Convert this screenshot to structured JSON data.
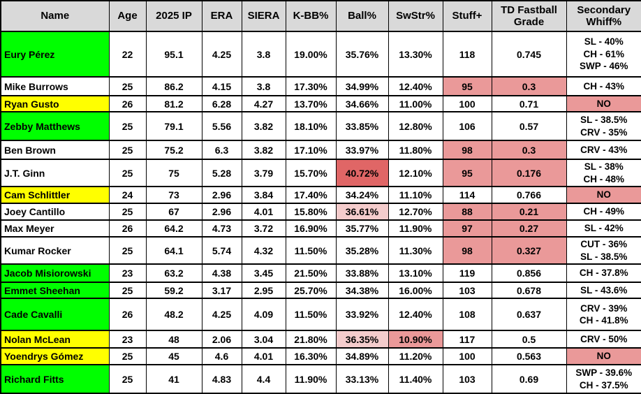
{
  "chart_data": {
    "type": "table",
    "colors": {
      "header_bg": "#d9d9d9",
      "green": "#00ff00",
      "yellow": "#ffff00",
      "red": "#ea9999",
      "dark_red": "#e06666",
      "pink": "#f4cccc",
      "white": "#ffffff",
      "border": "#000000"
    },
    "columns": [
      {
        "key": "name",
        "label": "Name"
      },
      {
        "key": "age",
        "label": "Age"
      },
      {
        "key": "ip",
        "label": "2025 IP"
      },
      {
        "key": "era",
        "label": "ERA"
      },
      {
        "key": "siera",
        "label": "SIERA"
      },
      {
        "key": "kbb",
        "label": "K-BB%"
      },
      {
        "key": "ball",
        "label": "Ball%"
      },
      {
        "key": "swstr",
        "label": "SwStr%"
      },
      {
        "key": "stuff",
        "label": "Stuff+"
      },
      {
        "key": "td",
        "label": "TD Fastball Grade"
      },
      {
        "key": "whiff",
        "label": "Secondary Whiff%"
      }
    ],
    "rows": [
      {
        "cells": {
          "name": "Eury Pérez",
          "age": "22",
          "ip": "95.1",
          "era": "4.25",
          "siera": "3.8",
          "kbb": "19.00%",
          "ball": "35.76%",
          "swstr": "13.30%",
          "stuff": "118",
          "td": "0.745",
          "whiff": "SL - 40%\nCH - 61%\nSWP - 46%"
        },
        "bg": {
          "name": "green"
        }
      },
      {
        "cells": {
          "name": "Mike Burrows",
          "age": "25",
          "ip": "86.2",
          "era": "4.15",
          "siera": "3.8",
          "kbb": "17.30%",
          "ball": "34.99%",
          "swstr": "12.40%",
          "stuff": "95",
          "td": "0.3",
          "whiff": "CH - 43%"
        },
        "bg": {
          "name": "white",
          "stuff": "red",
          "td": "red"
        }
      },
      {
        "cells": {
          "name": "Ryan Gusto",
          "age": "26",
          "ip": "81.2",
          "era": "6.28",
          "siera": "4.27",
          "kbb": "13.70%",
          "ball": "34.66%",
          "swstr": "11.00%",
          "stuff": "100",
          "td": "0.71",
          "whiff": "NO"
        },
        "bg": {
          "name": "yellow",
          "whiff": "red"
        }
      },
      {
        "cells": {
          "name": "Zebby Matthews",
          "age": "25",
          "ip": "79.1",
          "era": "5.56",
          "siera": "3.82",
          "kbb": "18.10%",
          "ball": "33.85%",
          "swstr": "12.80%",
          "stuff": "106",
          "td": "0.57",
          "whiff": "SL - 38.5%\nCRV - 35%"
        },
        "bg": {
          "name": "green"
        }
      },
      {
        "cells": {
          "name": "Ben Brown",
          "age": "25",
          "ip": "75.2",
          "era": "6.3",
          "siera": "3.82",
          "kbb": "17.10%",
          "ball": "33.97%",
          "swstr": "11.80%",
          "stuff": "98",
          "td": "0.3",
          "whiff": "CRV - 43%"
        },
        "bg": {
          "name": "white",
          "stuff": "red",
          "td": "red"
        }
      },
      {
        "cells": {
          "name": "J.T. Ginn",
          "age": "25",
          "ip": "75",
          "era": "5.28",
          "siera": "3.79",
          "kbb": "15.70%",
          "ball": "40.72%",
          "swstr": "12.10%",
          "stuff": "95",
          "td": "0.176",
          "whiff": "SL - 38%\nCH - 48%"
        },
        "bg": {
          "name": "white",
          "ball": "dark_red",
          "stuff": "red",
          "td": "red"
        }
      },
      {
        "cells": {
          "name": "Cam Schlittler",
          "age": "24",
          "ip": "73",
          "era": "2.96",
          "siera": "3.84",
          "kbb": "17.40%",
          "ball": "34.24%",
          "swstr": "11.10%",
          "stuff": "114",
          "td": "0.766",
          "whiff": "NO"
        },
        "bg": {
          "name": "yellow",
          "whiff": "red"
        }
      },
      {
        "cells": {
          "name": "Joey Cantillo",
          "age": "25",
          "ip": "67",
          "era": "2.96",
          "siera": "4.01",
          "kbb": "15.80%",
          "ball": "36.61%",
          "swstr": "12.70%",
          "stuff": "88",
          "td": "0.21",
          "whiff": "CH - 49%"
        },
        "bg": {
          "name": "white",
          "ball": "pink",
          "stuff": "red",
          "td": "red"
        }
      },
      {
        "cells": {
          "name": "Max Meyer",
          "age": "26",
          "ip": "64.2",
          "era": "4.73",
          "siera": "3.72",
          "kbb": "16.90%",
          "ball": "35.77%",
          "swstr": "11.90%",
          "stuff": "97",
          "td": "0.27",
          "whiff": "SL - 42%"
        },
        "bg": {
          "name": "white",
          "stuff": "red",
          "td": "red"
        }
      },
      {
        "cells": {
          "name": "Kumar Rocker",
          "age": "25",
          "ip": "64.1",
          "era": "5.74",
          "siera": "4.32",
          "kbb": "11.50%",
          "ball": "35.28%",
          "swstr": "11.30%",
          "stuff": "98",
          "td": "0.327",
          "whiff": "CUT - 36%\nSL - 38.5%"
        },
        "bg": {
          "name": "white",
          "stuff": "red",
          "td": "red"
        }
      },
      {
        "cells": {
          "name": "Jacob Misiorowski",
          "age": "23",
          "ip": "63.2",
          "era": "4.38",
          "siera": "3.45",
          "kbb": "21.50%",
          "ball": "33.88%",
          "swstr": "13.10%",
          "stuff": "119",
          "td": "0.856",
          "whiff": "CH - 37.8%"
        },
        "bg": {
          "name": "green"
        }
      },
      {
        "cells": {
          "name": "Emmet Sheehan",
          "age": "25",
          "ip": "59.2",
          "era": "3.17",
          "siera": "2.95",
          "kbb": "25.70%",
          "ball": "34.38%",
          "swstr": "16.00%",
          "stuff": "103",
          "td": "0.678",
          "whiff": "SL - 43.6%"
        },
        "bg": {
          "name": "green"
        }
      },
      {
        "cells": {
          "name": "Cade Cavalli",
          "age": "26",
          "ip": "48.2",
          "era": "4.25",
          "siera": "4.09",
          "kbb": "11.50%",
          "ball": "33.92%",
          "swstr": "12.40%",
          "stuff": "108",
          "td": "0.637",
          "whiff": "CRV - 39%\nCH - 41.8%"
        },
        "bg": {
          "name": "green"
        }
      },
      {
        "cells": {
          "name": "Nolan McLean",
          "age": "23",
          "ip": "48",
          "era": "2.06",
          "siera": "3.04",
          "kbb": "21.80%",
          "ball": "36.35%",
          "swstr": "10.90%",
          "stuff": "117",
          "td": "0.5",
          "whiff": "CRV - 50%"
        },
        "bg": {
          "name": "yellow",
          "ball": "pink",
          "swstr": "red"
        }
      },
      {
        "cells": {
          "name": "Yoendrys Gómez",
          "age": "25",
          "ip": "45",
          "era": "4.6",
          "siera": "4.01",
          "kbb": "16.30%",
          "ball": "34.89%",
          "swstr": "11.20%",
          "stuff": "100",
          "td": "0.563",
          "whiff": "NO"
        },
        "bg": {
          "name": "yellow",
          "whiff": "red"
        }
      },
      {
        "cells": {
          "name": "Richard Fitts",
          "age": "25",
          "ip": "41",
          "era": "4.83",
          "siera": "4.4",
          "kbb": "11.90%",
          "ball": "33.13%",
          "swstr": "11.40%",
          "stuff": "103",
          "td": "0.69",
          "whiff": "SWP - 39.6%\nCH - 37.5%"
        },
        "bg": {
          "name": "green"
        }
      }
    ]
  }
}
